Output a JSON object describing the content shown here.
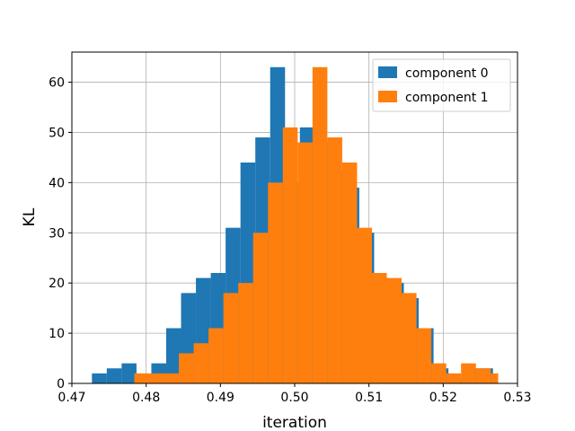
{
  "chart_data": {
    "type": "bar",
    "subtype": "overlapping-histogram",
    "title": "",
    "xlabel": "iteration",
    "ylabel": "KL",
    "xlim": [
      0.47,
      0.53
    ],
    "ylim": [
      0,
      66
    ],
    "xticks": [
      "0.47",
      "0.48",
      "0.49",
      "0.50",
      "0.51",
      "0.52",
      "0.53"
    ],
    "xtick_values": [
      0.47,
      0.48,
      0.49,
      0.5,
      0.51,
      0.52,
      0.53
    ],
    "yticks": [
      "0",
      "10",
      "20",
      "30",
      "40",
      "50",
      "60"
    ],
    "ytick_values": [
      0,
      10,
      20,
      30,
      40,
      50,
      60
    ],
    "grid": true,
    "legend_position": "top-right",
    "series": [
      {
        "name": "component 0",
        "color": "#1f77b4",
        "bin_edges": [
          0.4727,
          0.4747,
          0.4767,
          0.4787,
          0.4807,
          0.4827,
          0.4847,
          0.4867,
          0.4887,
          0.4907,
          0.4927,
          0.4947,
          0.4967,
          0.4987,
          0.5007,
          0.5027,
          0.5047,
          0.5067,
          0.5087,
          0.5107,
          0.5127,
          0.5147,
          0.5167,
          0.5187,
          0.5207,
          0.5227,
          0.5247,
          0.5267
        ],
        "counts": [
          2,
          3,
          4,
          0,
          4,
          11,
          18,
          21,
          22,
          31,
          44,
          49,
          63,
          40,
          51,
          48,
          42,
          39,
          30,
          21,
          20,
          17,
          11,
          3,
          1,
          3,
          3
        ]
      },
      {
        "name": "component 1",
        "color": "#ff7f0e",
        "bin_edges": [
          0.4784,
          0.4804,
          0.4824,
          0.4844,
          0.4864,
          0.4884,
          0.4904,
          0.4924,
          0.4944,
          0.4964,
          0.4984,
          0.5004,
          0.5024,
          0.5044,
          0.5064,
          0.5084,
          0.5104,
          0.5124,
          0.5144,
          0.5164,
          0.5184,
          0.5204,
          0.5224,
          0.5244,
          0.5264,
          0.5274
        ],
        "counts": [
          2,
          2,
          2,
          6,
          8,
          11,
          18,
          20,
          30,
          40,
          51,
          48,
          63,
          49,
          44,
          31,
          22,
          21,
          18,
          11,
          4,
          2,
          4,
          3,
          2
        ]
      }
    ]
  }
}
